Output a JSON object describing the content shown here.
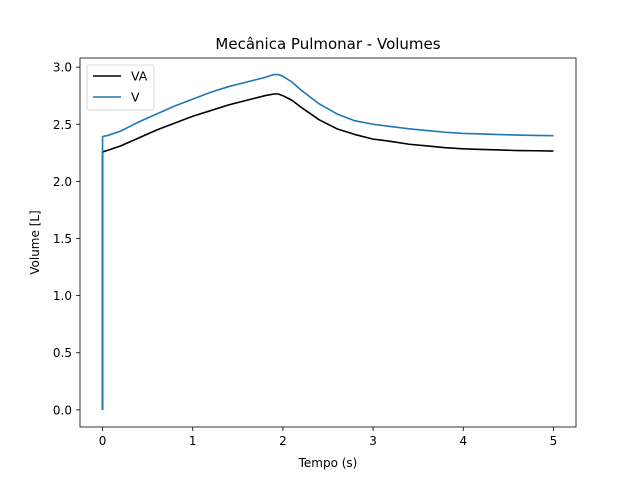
{
  "chart_data": {
    "type": "line",
    "title": "Mecânica Pulmonar - Volumes",
    "xlabel": "Tempo (s)",
    "ylabel": "Volume [L]",
    "xlim": [
      -0.25,
      5.25
    ],
    "ylim": [
      -0.15,
      3.08
    ],
    "xticks": [
      "0",
      "1",
      "2",
      "3",
      "4",
      "5"
    ],
    "yticks": [
      "0.0",
      "0.5",
      "1.0",
      "1.5",
      "2.0",
      "2.5",
      "3.0"
    ],
    "grid": false,
    "legend_position": "top-left",
    "series": [
      {
        "name": "VA",
        "color": "#000000",
        "x": [
          0,
          0,
          0.01,
          0.05,
          0.2,
          0.4,
          0.6,
          0.8,
          1.0,
          1.2,
          1.4,
          1.6,
          1.8,
          1.9,
          1.95,
          2.0,
          2.1,
          2.2,
          2.4,
          2.6,
          2.8,
          3.0,
          3.2,
          3.4,
          3.6,
          3.8,
          4.0,
          4.2,
          4.4,
          4.6,
          4.8,
          5.0
        ],
        "y": [
          0,
          2.26,
          2.26,
          2.27,
          2.31,
          2.38,
          2.45,
          2.51,
          2.57,
          2.62,
          2.67,
          2.71,
          2.75,
          2.765,
          2.765,
          2.75,
          2.71,
          2.65,
          2.54,
          2.46,
          2.41,
          2.37,
          2.35,
          2.325,
          2.31,
          2.295,
          2.285,
          2.28,
          2.275,
          2.27,
          2.268,
          2.265
        ]
      },
      {
        "name": "V",
        "color": "#1f77b4",
        "x": [
          0,
          0,
          0.01,
          0.05,
          0.2,
          0.4,
          0.6,
          0.8,
          1.0,
          1.2,
          1.4,
          1.6,
          1.8,
          1.9,
          1.95,
          2.0,
          2.1,
          2.2,
          2.4,
          2.6,
          2.8,
          3.0,
          3.2,
          3.4,
          3.6,
          3.8,
          4.0,
          4.2,
          4.4,
          4.6,
          4.8,
          5.0
        ],
        "y": [
          0,
          2.39,
          2.395,
          2.4,
          2.44,
          2.52,
          2.59,
          2.66,
          2.72,
          2.78,
          2.83,
          2.87,
          2.91,
          2.935,
          2.935,
          2.92,
          2.87,
          2.8,
          2.68,
          2.59,
          2.53,
          2.5,
          2.48,
          2.46,
          2.445,
          2.43,
          2.42,
          2.415,
          2.41,
          2.405,
          2.402,
          2.4
        ]
      }
    ]
  }
}
